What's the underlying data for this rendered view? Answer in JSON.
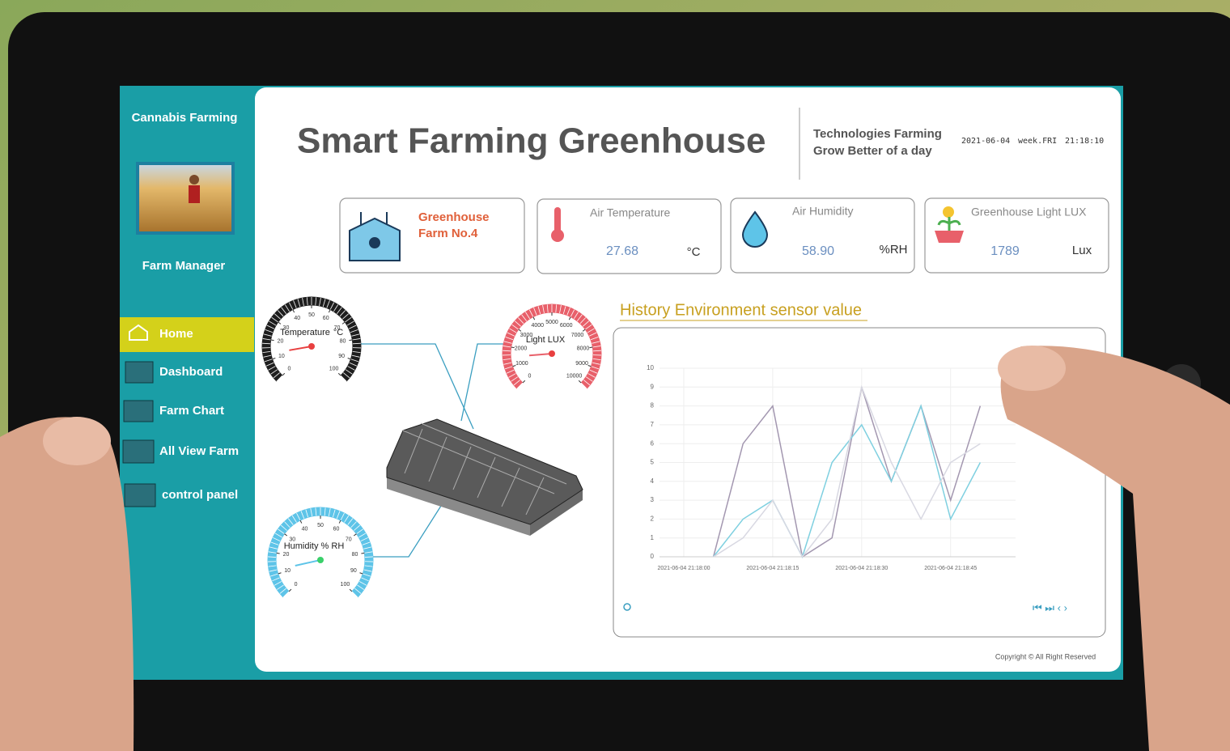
{
  "sidebar": {
    "brand": "Cannabis Farming",
    "user": "Farm Manager",
    "menu": [
      "Home",
      "Dashboard",
      "Farm Chart",
      "All View Farm",
      "control panel"
    ]
  },
  "header": {
    "title": "Smart Farming Greenhouse",
    "slogan": [
      "Technologies Farming",
      "Grow Better of a day"
    ],
    "date": "2021-06-04",
    "weekday": "week.FRI",
    "time": "21:18:10"
  },
  "cards": [
    {
      "name": "Greenhouse",
      "farm": "Farm No.4"
    },
    {
      "label": "Air Temperature",
      "value": "27.68",
      "unit": "°C"
    },
    {
      "label": "Air Humidity",
      "value": "58.90",
      "unit": "%RH"
    },
    {
      "label": "Greenhouse Light LUX",
      "value": "1789",
      "unit": "Lux"
    }
  ],
  "gauges": [
    {
      "title": "Temperature",
      "unit": "°C",
      "ticks": [
        0,
        10,
        20,
        30,
        40,
        50,
        60,
        70,
        80,
        90,
        100
      ],
      "needle": 13,
      "color": "#1e1e1e"
    },
    {
      "title": "Light LUX",
      "ticks": [
        0,
        1000,
        2000,
        3000,
        4000,
        5000,
        6000,
        7000,
        8000,
        9000,
        10000
      ],
      "needle": 1500,
      "color": "#e8606a"
    },
    {
      "title": "Humidity % RH",
      "ticks": [
        0,
        10,
        20,
        30,
        40,
        50,
        60,
        70,
        80,
        90,
        100
      ],
      "needle": 12,
      "color": "#5ec4e8"
    }
  ],
  "chart_data": {
    "type": "line",
    "title": "History Environment sensor value",
    "categories": [
      "2021-06-04 21:18:00",
      null,
      null,
      "2021-06-04 21:18:15",
      null,
      null,
      "2021-06-04 21:18:30",
      null,
      null,
      "2021-06-04 21:18:45",
      null,
      null
    ],
    "series": [
      {
        "color": "#a397b0",
        "values": [
          null,
          0,
          6,
          8,
          0,
          1,
          9,
          4,
          8,
          3,
          8,
          null
        ]
      },
      {
        "color": "#7fd0e0",
        "values": [
          null,
          0,
          2,
          3,
          0,
          5,
          7,
          4,
          8,
          2,
          5,
          null
        ]
      },
      {
        "color": "#d8d8e2",
        "values": [
          null,
          0,
          1,
          3,
          0,
          2,
          9,
          5,
          2,
          5,
          6,
          null
        ]
      }
    ],
    "ylim": [
      0,
      10
    ],
    "yticks": [
      0,
      1,
      2,
      3,
      4,
      5,
      6,
      7,
      8,
      9,
      10
    ],
    "grid": true
  },
  "footer": {
    "copyright": "Copyright © All Right Reserved"
  }
}
